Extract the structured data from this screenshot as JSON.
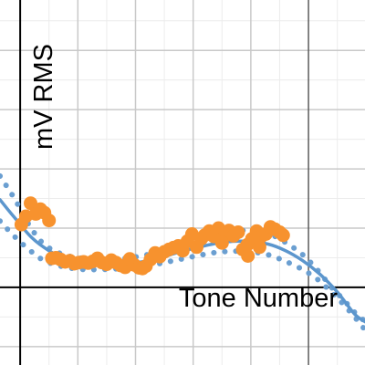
{
  "chart_data": {
    "type": "scatter",
    "title": "",
    "xlabel": "Tone Number",
    "ylabel": "mV RMS",
    "xlim": [
      -0.35,
      5.98
    ],
    "ylim": [
      -1.31,
      4.85
    ],
    "grid": true,
    "minor_grid": true,
    "colors": {
      "background": "#ffffff",
      "major_grid": "#c9c9c9",
      "minor_grid": "#ececec",
      "axis": "#000000",
      "fit_line": "#5c96cd",
      "band": "#6b9fd1",
      "points": "#f7922e"
    },
    "series": [
      {
        "role": "fit_curve",
        "x": [
          -0.35,
          -0.1,
          0.2,
          0.5,
          0.8,
          1.1,
          1.5,
          1.9,
          2.3,
          2.7,
          3.1,
          3.5,
          3.9,
          4.3,
          4.6,
          4.9,
          5.2,
          5.5,
          5.8,
          5.98
        ],
        "y": [
          1.48,
          1.18,
          0.84,
          0.62,
          0.48,
          0.42,
          0.39,
          0.41,
          0.46,
          0.58,
          0.68,
          0.76,
          0.78,
          0.73,
          0.62,
          0.45,
          0.22,
          -0.08,
          -0.45,
          -0.58
        ]
      },
      {
        "role": "confidence_upper",
        "x": [
          -0.35,
          -0.1,
          0.15,
          0.4,
          0.7,
          1.0,
          1.3,
          1.6,
          1.9,
          2.2,
          2.5,
          2.8,
          3.1,
          3.4,
          3.7,
          4.0,
          4.3,
          4.6,
          4.9,
          5.15,
          5.4,
          5.6,
          5.8,
          5.95
        ],
        "y": [
          1.88,
          1.5,
          1.06,
          0.74,
          0.57,
          0.5,
          0.48,
          0.48,
          0.5,
          0.55,
          0.63,
          0.72,
          0.81,
          0.9,
          0.95,
          0.96,
          0.91,
          0.76,
          0.55,
          0.3,
          0.0,
          -0.2,
          -0.42,
          -0.55
        ]
      },
      {
        "role": "confidence_lower",
        "x": [
          -0.35,
          -0.1,
          0.15,
          0.4,
          0.7,
          1.0,
          1.3,
          1.6,
          1.9,
          2.2,
          2.5,
          2.8,
          3.1,
          3.4,
          3.7,
          4.0,
          4.3,
          4.6,
          4.9,
          5.15,
          5.4,
          5.6,
          5.8,
          5.95
        ],
        "y": [
          1.12,
          0.86,
          0.64,
          0.46,
          0.36,
          0.31,
          0.3,
          0.31,
          0.33,
          0.36,
          0.42,
          0.48,
          0.54,
          0.59,
          0.61,
          0.6,
          0.55,
          0.44,
          0.3,
          0.14,
          -0.08,
          -0.28,
          -0.5,
          -0.68
        ]
      },
      {
        "role": "measured_points",
        "x": [
          0.02,
          0.1,
          0.18,
          0.27,
          0.35,
          0.42,
          0.5,
          0.55,
          0.62,
          0.7,
          0.78,
          0.86,
          0.94,
          1.02,
          1.1,
          1.18,
          1.26,
          1.34,
          1.42,
          1.5,
          1.58,
          1.66,
          1.74,
          1.82,
          1.9,
          1.98,
          2.06,
          2.12,
          2.18,
          2.26,
          2.34,
          2.42,
          2.5,
          2.58,
          2.66,
          2.74,
          2.82,
          2.9,
          2.98,
          3.06,
          3.14,
          3.2,
          3.28,
          3.36,
          3.44,
          3.5,
          3.56,
          3.62,
          3.7,
          3.78,
          3.86,
          3.94,
          4.02,
          4.1,
          4.18,
          4.26,
          4.34,
          4.42,
          4.5,
          4.56,
          3.5,
          3.95,
          4.15
        ],
        "y": [
          1.06,
          1.2,
          1.42,
          1.24,
          1.32,
          1.26,
          1.13,
          0.49,
          0.5,
          0.47,
          0.43,
          0.45,
          0.4,
          0.42,
          0.43,
          0.41,
          0.44,
          0.49,
          0.42,
          0.39,
          0.46,
          0.42,
          0.37,
          0.34,
          0.48,
          0.38,
          0.33,
          0.32,
          0.36,
          0.47,
          0.58,
          0.52,
          0.6,
          0.64,
          0.67,
          0.7,
          0.62,
          0.78,
          0.9,
          0.68,
          0.82,
          0.88,
          0.95,
          0.86,
          1.0,
          0.82,
          0.93,
          0.96,
          0.87,
          0.93,
          0.64,
          0.72,
          0.82,
          0.95,
          0.86,
          0.9,
          1.02,
          0.98,
          0.93,
          0.88,
          0.75,
          0.53,
          0.68
        ]
      }
    ]
  }
}
